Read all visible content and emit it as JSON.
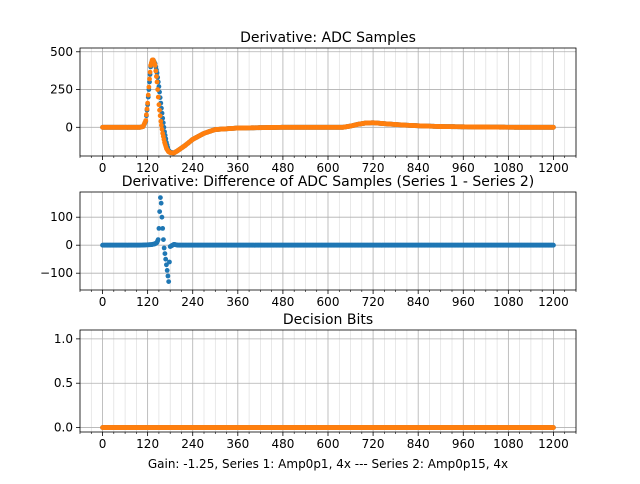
{
  "figure": {
    "footer": "Gain: -1.25, Series 1: Amp0p1, 4x --- Series 2: Amp0p15, 4x"
  },
  "colors": {
    "series1": "#1f77b4",
    "series2": "#ff7f0e",
    "grid": "#b0b0b0"
  },
  "chart_data": [
    {
      "type": "scatter",
      "title": "Derivative: ADC Samples",
      "xlim": [
        -60,
        1260
      ],
      "ylim": [
        -190,
        525
      ],
      "xticks": [
        0,
        120,
        240,
        360,
        480,
        600,
        720,
        840,
        960,
        1080,
        1200
      ],
      "xtick_labels": [
        "0",
        "120",
        "240",
        "360",
        "480",
        "600",
        "720",
        "840",
        "960",
        "1080",
        "1200"
      ],
      "yticks": [
        0,
        250,
        500
      ],
      "ytick_labels": [
        "0",
        "250",
        "500"
      ],
      "grid": true,
      "series": [
        {
          "color": "#1f77b4",
          "x": [
            0,
            100,
            108,
            115,
            120,
            125,
            128,
            132,
            135,
            140,
            145,
            150,
            155,
            160,
            165,
            170,
            175,
            180,
            190,
            200,
            220,
            240,
            270,
            300,
            360,
            480,
            600,
            640,
            660,
            680,
            700,
            720,
            760,
            800,
            840,
            900,
            1000,
            1100,
            1200
          ],
          "y": [
            0,
            0,
            5,
            40,
            150,
            300,
            400,
            440,
            445,
            420,
            360,
            270,
            160,
            60,
            -30,
            -100,
            -150,
            -165,
            -170,
            -155,
            -120,
            -80,
            -40,
            -15,
            -5,
            0,
            0,
            0,
            8,
            20,
            28,
            30,
            22,
            15,
            10,
            5,
            2,
            0,
            0
          ]
        },
        {
          "color": "#ff7f0e",
          "x": [
            0,
            100,
            108,
            115,
            120,
            125,
            128,
            132,
            135,
            140,
            145,
            150,
            155,
            160,
            165,
            170,
            175,
            180,
            190,
            200,
            220,
            240,
            270,
            300,
            360,
            480,
            600,
            640,
            660,
            680,
            700,
            720,
            760,
            800,
            840,
            900,
            1000,
            1100,
            1200
          ],
          "y": [
            0,
            0,
            5,
            45,
            160,
            320,
            410,
            445,
            445,
            410,
            300,
            150,
            40,
            -40,
            -100,
            -140,
            -160,
            -168,
            -170,
            -155,
            -120,
            -80,
            -40,
            -15,
            -5,
            0,
            0,
            0,
            8,
            20,
            28,
            30,
            22,
            15,
            10,
            5,
            2,
            0,
            0
          ]
        }
      ]
    },
    {
      "type": "scatter",
      "title": "Derivative: Difference of ADC Samples (Series 1 - Series 2)",
      "xlim": [
        -60,
        1260
      ],
      "ylim": [
        -160,
        190
      ],
      "xticks": [
        0,
        120,
        240,
        360,
        480,
        600,
        720,
        840,
        960,
        1080,
        1200
      ],
      "xtick_labels": [
        "0",
        "120",
        "240",
        "360",
        "480",
        "600",
        "720",
        "840",
        "960",
        "1080",
        "1200"
      ],
      "yticks": [
        -100,
        0,
        100
      ],
      "ytick_labels": [
        "−100",
        "0",
        "100"
      ],
      "grid": true,
      "series": [
        {
          "color": "#1f77b4",
          "x": [
            0,
            100,
            130,
            140,
            145,
            148,
            150,
            152,
            154,
            156,
            158,
            160,
            162,
            164,
            166,
            168,
            170,
            172,
            174,
            176,
            178,
            180,
            190,
            200,
            240,
            360,
            480,
            600,
            720,
            840,
            960,
            1080,
            1200
          ],
          "y": [
            0,
            0,
            2,
            5,
            10,
            20,
            60,
            120,
            170,
            150,
            100,
            60,
            20,
            -10,
            -30,
            -50,
            -70,
            -90,
            -110,
            -130,
            -60,
            -5,
            3,
            0,
            0,
            0,
            0,
            0,
            0,
            0,
            0,
            0,
            0
          ]
        }
      ]
    },
    {
      "type": "scatter",
      "title": "Decision Bits",
      "xlim": [
        -60,
        1260
      ],
      "ylim": [
        -0.05,
        1.1
      ],
      "xticks": [
        0,
        120,
        240,
        360,
        480,
        600,
        720,
        840,
        960,
        1080,
        1200
      ],
      "xtick_labels": [
        "0",
        "120",
        "240",
        "360",
        "480",
        "600",
        "720",
        "840",
        "960",
        "1080",
        "1200"
      ],
      "yticks": [
        0,
        0.5,
        1.0
      ],
      "ytick_labels": [
        "0.0",
        "0.5",
        "1.0"
      ],
      "grid": true,
      "series": [
        {
          "color": "#1f77b4",
          "x": [
            0,
            1200
          ],
          "y": [
            0,
            0
          ]
        },
        {
          "color": "#ff7f0e",
          "x": [
            0,
            1200
          ],
          "y": [
            0,
            0
          ]
        }
      ]
    }
  ]
}
